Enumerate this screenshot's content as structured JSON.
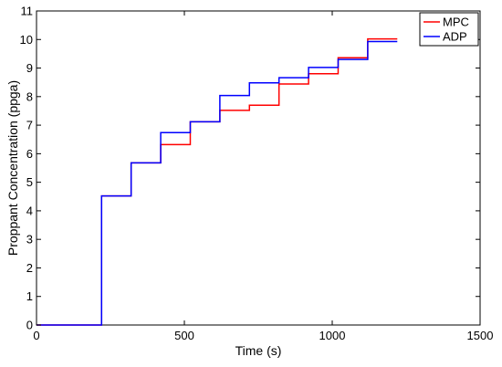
{
  "chart_data": {
    "type": "line",
    "xlabel": "Time (s)",
    "ylabel": "Proppant Concentration (ppga)",
    "xlim": [
      0,
      1500
    ],
    "ylim": [
      0,
      11
    ],
    "xticks": [
      "0",
      "500",
      "1000",
      "1500"
    ],
    "yticks": [
      "0",
      "1",
      "2",
      "3",
      "4",
      "5",
      "6",
      "7",
      "8",
      "9",
      "10",
      "11"
    ],
    "grid": false,
    "legend_position": "top-right",
    "series": [
      {
        "name": "MPC",
        "color": "#ff0000",
        "step": "post",
        "x": [
          0,
          220,
          320,
          420,
          520,
          620,
          720,
          820,
          920,
          1020,
          1120,
          1220
        ],
        "y": [
          0,
          4.52,
          5.68,
          6.32,
          7.12,
          7.52,
          7.7,
          8.44,
          8.8,
          9.36,
          10.02,
          10.02
        ]
      },
      {
        "name": "ADP",
        "color": "#0000ff",
        "step": "post",
        "x": [
          0,
          220,
          320,
          420,
          520,
          620,
          720,
          820,
          920,
          1020,
          1120,
          1220
        ],
        "y": [
          0,
          4.52,
          5.68,
          6.74,
          7.12,
          8.04,
          8.48,
          8.66,
          9.02,
          9.3,
          9.93,
          9.93
        ]
      }
    ]
  }
}
